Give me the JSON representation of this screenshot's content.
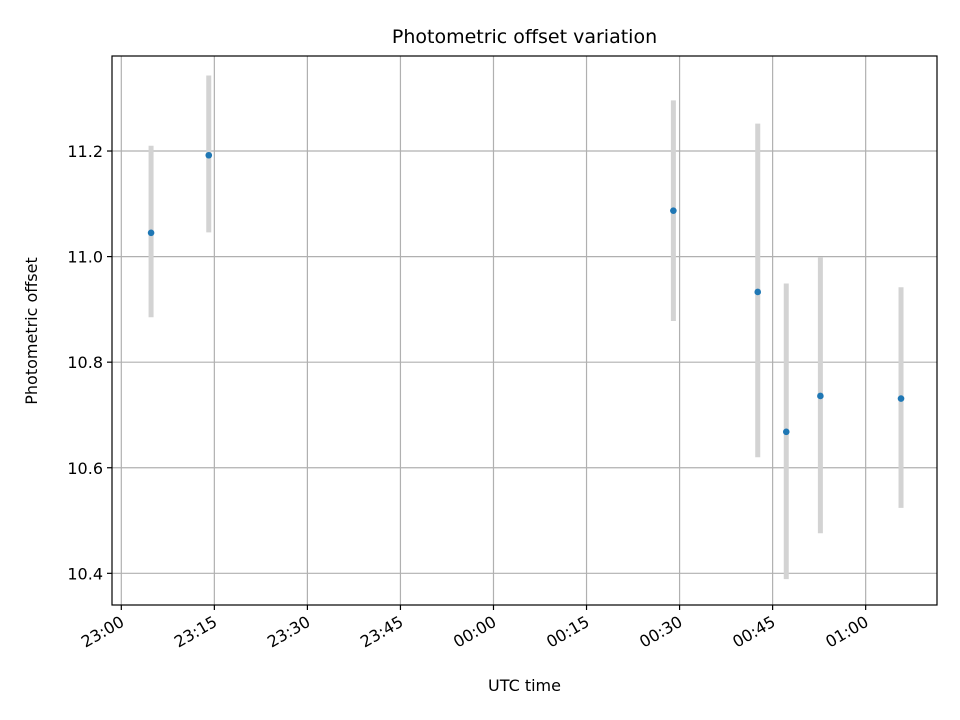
{
  "chart_data": {
    "type": "scatter",
    "title": "Photometric offset variation",
    "xlabel": "UTC time",
    "ylabel": "Photometric offset",
    "x_ticks": [
      "23:00",
      "23:15",
      "23:30",
      "23:45",
      "00:00",
      "00:15",
      "00:30",
      "00:45",
      "01:00"
    ],
    "y_ticks": [
      "10.4",
      "10.6",
      "10.8",
      "11.0",
      "11.2"
    ],
    "xlim": [
      "22:58.5",
      "01:11.5"
    ],
    "ylim": [
      10.34,
      11.38
    ],
    "grid": true,
    "marker_color": "#1f77b4",
    "errorbar_color": "#d3d3d3",
    "points": [
      {
        "t": "23:04.8",
        "y": 11.045,
        "yerr_low": 10.885,
        "yerr_high": 11.21
      },
      {
        "t": "23:14.1",
        "y": 11.192,
        "yerr_low": 11.046,
        "yerr_high": 11.343
      },
      {
        "t": "00:29.0",
        "y": 11.087,
        "yerr_low": 10.878,
        "yerr_high": 11.296
      },
      {
        "t": "00:42.6",
        "y": 10.933,
        "yerr_low": 10.62,
        "yerr_high": 11.252
      },
      {
        "t": "00:47.2",
        "y": 10.668,
        "yerr_low": 10.389,
        "yerr_high": 10.949
      },
      {
        "t": "00:52.7",
        "y": 10.736,
        "yerr_low": 10.476,
        "yerr_high": 10.999
      },
      {
        "t": "01:05.7",
        "y": 10.731,
        "yerr_low": 10.524,
        "yerr_high": 10.942
      }
    ]
  }
}
